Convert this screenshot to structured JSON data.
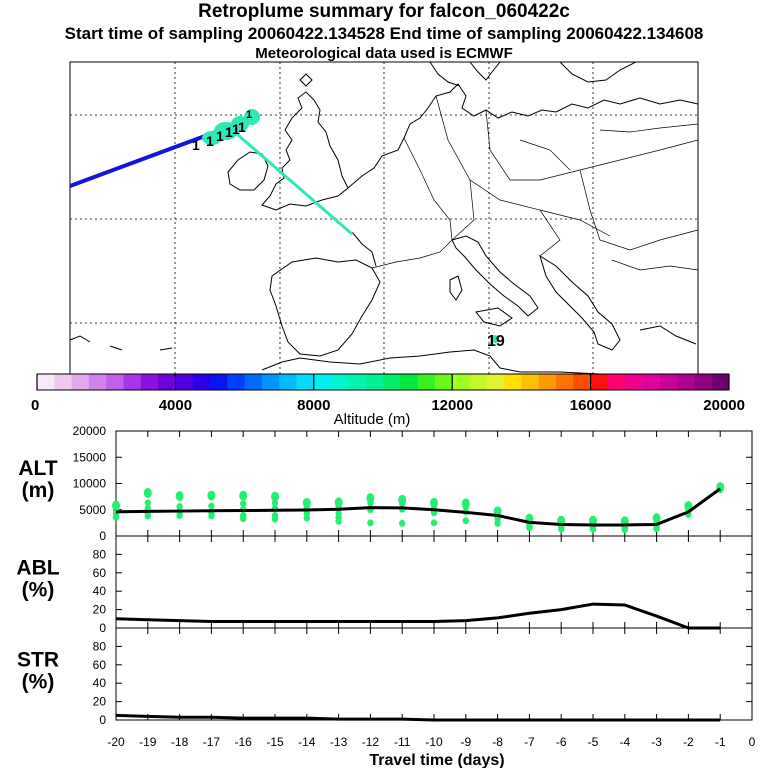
{
  "header": {
    "title": "Retroplume summary for falcon_060422c",
    "subtitle_sampling": "Start time of sampling 20060422.134528     End time of sampling 20060422.134608",
    "subtitle_met": "Meteorological data used is ECMWF"
  },
  "map": {
    "plume_labels": [
      "1",
      "1",
      "1",
      "1",
      "1",
      "1",
      "1"
    ],
    "end_label": "19"
  },
  "colorbar": {
    "title": "Altitude (m)",
    "tick_labels": [
      "0",
      "4000",
      "8000",
      "12000",
      "16000",
      "20000"
    ],
    "colors": [
      "#f9e8f7",
      "#f0c8ef",
      "#e4a8ec",
      "#d282ec",
      "#c060ea",
      "#a836e6",
      "#8e10e0",
      "#7000dc",
      "#5000e0",
      "#2a00e6",
      "#0a14f0",
      "#0040ff",
      "#006aff",
      "#0094ff",
      "#00baff",
      "#00dcff",
      "#00f0f0",
      "#00f8d0",
      "#00f5b0",
      "#00f290",
      "#00ef6a",
      "#00e840",
      "#38f020",
      "#6cf818",
      "#9cff20",
      "#c4f828",
      "#e4f030",
      "#ffe000",
      "#ffc000",
      "#ff9a00",
      "#ff7400",
      "#ff4c00",
      "#ff1010",
      "#ff0070",
      "#f00090",
      "#e000a0",
      "#c80098",
      "#b00090",
      "#900080",
      "#700070"
    ],
    "color_scheme": {
      "altitude_path": "#2fe8b8",
      "dots": "#22f070",
      "track_blue": "#1414d8"
    }
  },
  "chart_data": [
    {
      "type": "line",
      "name": "ALT",
      "ylabel": "ALT\n(m)",
      "ylabel_top": "ALT",
      "ylabel_bottom": "(m)",
      "xlim": [
        -20,
        0
      ],
      "ylim": [
        0,
        20000
      ],
      "yticks": [
        0,
        5000,
        10000,
        15000,
        20000
      ],
      "ytick_labels": [
        "0",
        "5000",
        "10000",
        "15000",
        "20000"
      ],
      "x": [
        -20,
        -19,
        -18,
        -17,
        -16,
        -15,
        -14,
        -13,
        -12,
        -11,
        -10,
        -9,
        -8,
        -7,
        -6,
        -5,
        -4,
        -3,
        -2,
        -1
      ],
      "values": [
        4600,
        4700,
        4750,
        4800,
        4850,
        4900,
        4950,
        5100,
        5400,
        5350,
        5000,
        4500,
        3900,
        2600,
        2200,
        2100,
        2100,
        2200,
        4600,
        9000
      ],
      "scatter": [
        {
          "x": -20,
          "y": [
            5800,
            4300,
            3600,
            4900
          ]
        },
        {
          "x": -19,
          "y": [
            8200,
            6300,
            5200,
            4400,
            3800
          ]
        },
        {
          "x": -18,
          "y": [
            7600,
            5600,
            4600,
            3900
          ]
        },
        {
          "x": -17,
          "y": [
            7700,
            5700,
            4500,
            3800
          ]
        },
        {
          "x": -16,
          "y": [
            7700,
            6200,
            5100,
            3900,
            3300
          ]
        },
        {
          "x": -15,
          "y": [
            7500,
            6300,
            5200,
            3900,
            3200
          ]
        },
        {
          "x": -14,
          "y": [
            6300,
            5300,
            4300,
            3400
          ]
        },
        {
          "x": -13,
          "y": [
            6400,
            5400,
            4300,
            3500,
            2800
          ]
        },
        {
          "x": -12,
          "y": [
            7200,
            6300,
            5000,
            2500
          ]
        },
        {
          "x": -11,
          "y": [
            6900,
            6200,
            5100,
            2400
          ]
        },
        {
          "x": -10,
          "y": [
            6300,
            5200,
            4400,
            2500
          ]
        },
        {
          "x": -9,
          "y": [
            6200,
            5600,
            4600,
            2900
          ]
        },
        {
          "x": -8,
          "y": [
            4700,
            3800,
            3200,
            2400
          ]
        },
        {
          "x": -7,
          "y": [
            3300,
            2700,
            2200,
            1600
          ]
        },
        {
          "x": -6,
          "y": [
            2900,
            2300,
            1800,
            1300
          ]
        },
        {
          "x": -5,
          "y": [
            2900,
            2200,
            1700,
            1300
          ]
        },
        {
          "x": -4,
          "y": [
            2800,
            2200,
            1600,
            1200
          ]
        },
        {
          "x": -3,
          "y": [
            3400,
            2600,
            2000,
            1400
          ]
        },
        {
          "x": -2,
          "y": [
            5700,
            5100,
            4100
          ]
        },
        {
          "x": -1,
          "y": [
            9300,
            9000,
            8800
          ]
        }
      ]
    },
    {
      "type": "line",
      "name": "ABL",
      "ylabel_top": "ABL",
      "ylabel_bottom": "(%)",
      "xlim": [
        -20,
        0
      ],
      "ylim": [
        0,
        100
      ],
      "yticks": [
        0,
        20,
        40,
        60,
        80
      ],
      "ytick_labels": [
        "0",
        "20",
        "40",
        "60",
        "80"
      ],
      "x": [
        -20,
        -19,
        -18,
        -17,
        -16,
        -15,
        -14,
        -13,
        -12,
        -11,
        -10,
        -9,
        -8,
        -7,
        -6,
        -5,
        -4,
        -3,
        -2,
        -1
      ],
      "values": [
        10,
        9,
        8,
        7,
        7,
        7,
        7,
        7,
        7,
        7,
        7,
        8,
        11,
        16,
        20,
        26,
        25,
        13,
        0,
        0
      ]
    },
    {
      "type": "line",
      "name": "STR",
      "ylabel_top": "STR",
      "ylabel_bottom": "(%)",
      "xlim": [
        -20,
        0
      ],
      "ylim": [
        0,
        100
      ],
      "yticks": [
        0,
        20,
        40,
        60,
        80
      ],
      "ytick_labels": [
        "0",
        "20",
        "40",
        "60",
        "80"
      ],
      "x": [
        -20,
        -19,
        -18,
        -17,
        -16,
        -15,
        -14,
        -13,
        -12,
        -11,
        -10,
        -9,
        -8,
        -7,
        -6,
        -5,
        -4,
        -3,
        -2,
        -1
      ],
      "values": [
        5,
        4,
        3,
        3,
        2,
        2,
        2,
        1,
        1,
        1,
        0,
        0,
        0,
        0,
        0,
        0,
        0,
        0,
        0,
        0
      ]
    }
  ],
  "xaxis": {
    "label": "Travel time (days)",
    "ticks": [
      -20,
      -19,
      -18,
      -17,
      -16,
      -15,
      -14,
      -13,
      -12,
      -11,
      -10,
      -9,
      -8,
      -7,
      -6,
      -5,
      -4,
      -3,
      -2,
      -1,
      0
    ],
    "tick_labels": [
      "-20",
      "-19",
      "-18",
      "-17",
      "-16",
      "-15",
      "-14",
      "-13",
      "-12",
      "-11",
      "-10",
      "-9",
      "-8",
      "-7",
      "-6",
      "-5",
      "-4",
      "-3",
      "-2",
      "-1",
      "0"
    ]
  }
}
